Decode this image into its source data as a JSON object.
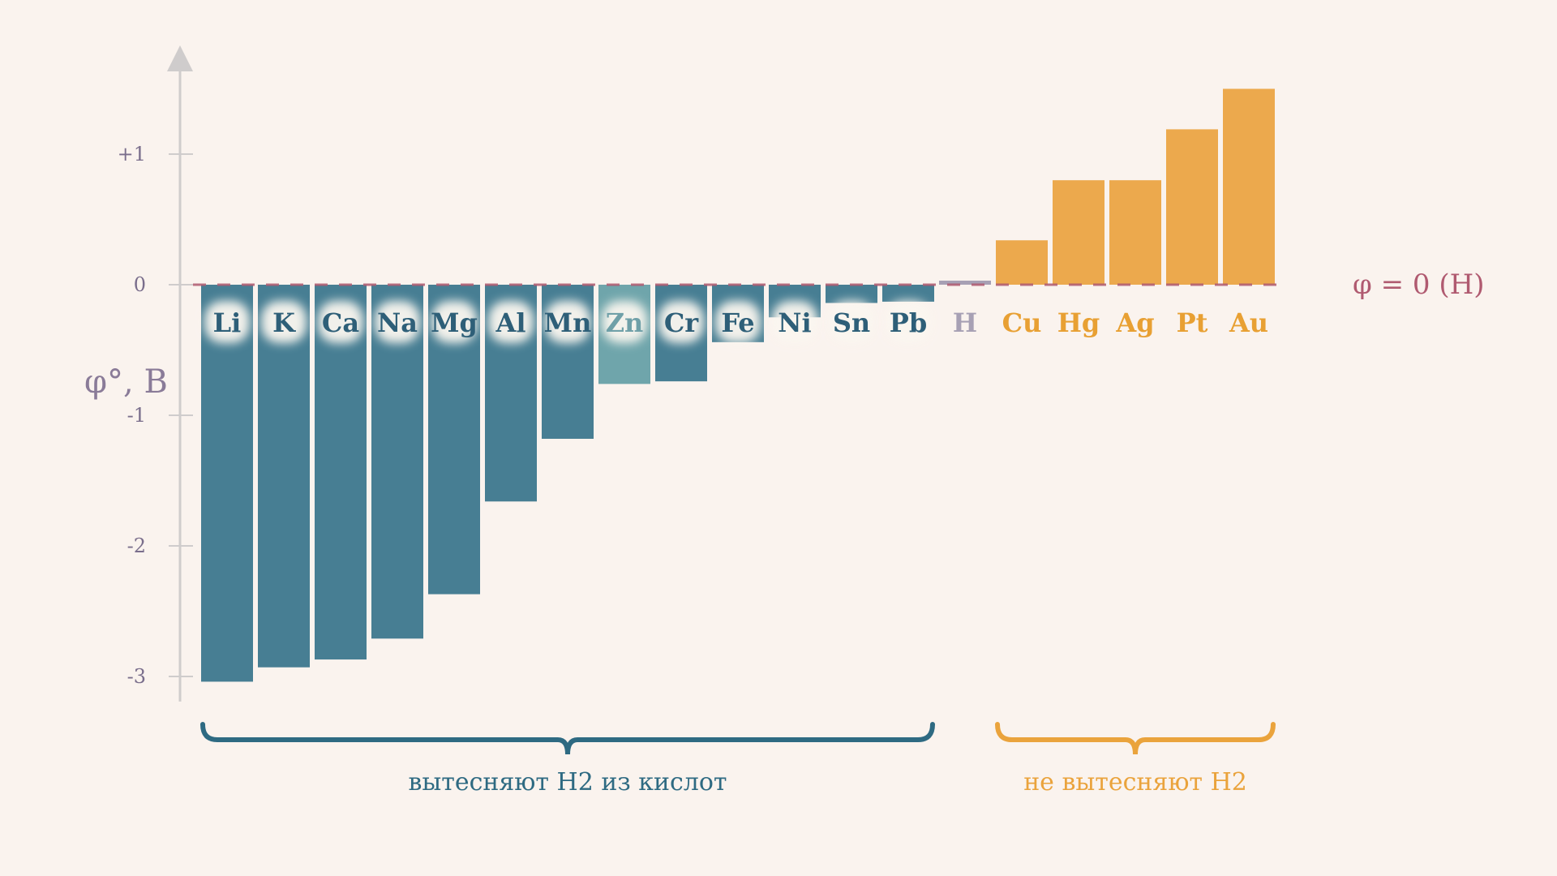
{
  "chart_data": {
    "type": "bar",
    "title": "",
    "xlabel": "",
    "ylabel": "φ°, B",
    "ylim": [
      -3.13,
      1.85
    ],
    "yticks": [
      {
        "value": 1,
        "label": "+1"
      },
      {
        "value": 0,
        "label": "0"
      },
      {
        "value": -1,
        "label": "-1"
      },
      {
        "value": -2,
        "label": "-2"
      },
      {
        "value": -3,
        "label": "-3"
      }
    ],
    "categories": [
      "Li",
      "K",
      "Ca",
      "Na",
      "Mg",
      "Al",
      "Mn",
      "Zn",
      "Cr",
      "Fe",
      "Ni",
      "Sn",
      "Pb",
      "H",
      "Cu",
      "Hg",
      "Ag",
      "Pt",
      "Au"
    ],
    "values": [
      -3.04,
      -2.93,
      -2.87,
      -2.71,
      -2.37,
      -1.66,
      -1.18,
      -0.76,
      -0.74,
      -0.44,
      -0.25,
      -0.14,
      -0.13,
      0.0,
      0.34,
      0.8,
      0.8,
      1.19,
      1.5
    ],
    "reference_line": {
      "value": 0,
      "label": "φ = 0 (H)"
    },
    "groups": [
      {
        "label": "вытесняют H2 из кислот",
        "from": 0,
        "to": 12,
        "color": "#2e6a82"
      },
      {
        "label": "не вытесняют H2",
        "from": 14,
        "to": 18,
        "color": "#eaa33c"
      }
    ],
    "grid": false,
    "legend": "none"
  },
  "colors": {
    "background": "#faf3ee",
    "active_metal": "#477e93",
    "highlight_metal": "#6fa5ab",
    "hydrogen": "#a7a0b4",
    "noble_metal": "#eca94d",
    "active_label": "#2e5f78",
    "noble_label": "#e8a033",
    "reference_line": "#b05a70",
    "axis": "#cfcccc"
  }
}
